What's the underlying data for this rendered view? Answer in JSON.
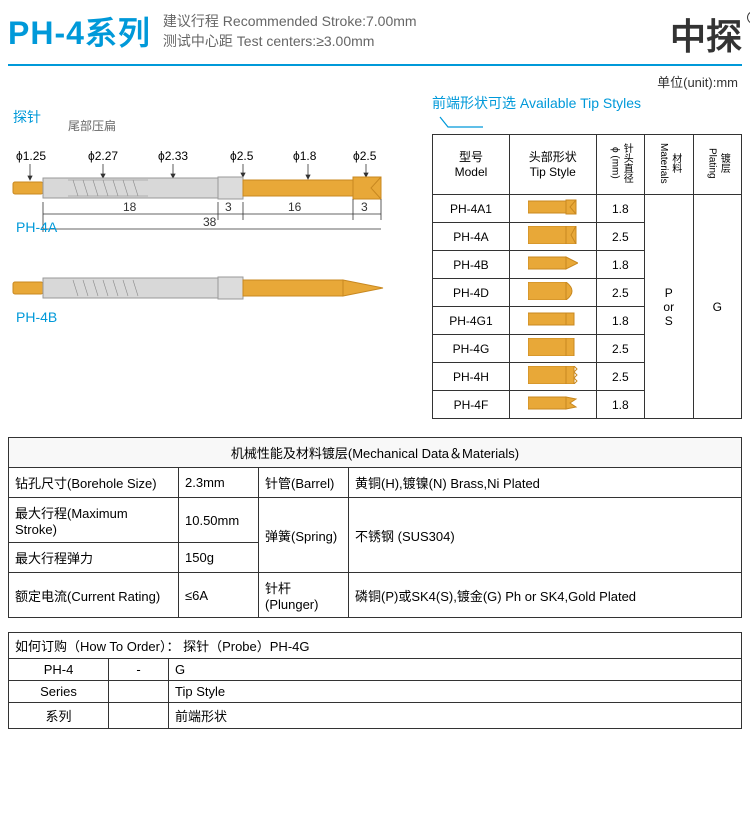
{
  "header": {
    "title": "PH-4系列",
    "stroke_label": "建议行程 Recommended Stroke:",
    "stroke_value": "7.00mm",
    "centers_label": "测试中心距 Test centers:",
    "centers_value": "≥3.00mm",
    "brand": "中探"
  },
  "diagram": {
    "probe_label": "探针",
    "tail_label": "尾部压扁",
    "dims": {
      "d1": "ϕ1.25",
      "d2": "ϕ2.27",
      "d3": "ϕ2.33",
      "d4": "ϕ2.5",
      "d5": "ϕ1.8",
      "d6": "ϕ2.5"
    },
    "lengths": {
      "l1": "18",
      "l2": "3",
      "l3": "16",
      "l4": "3",
      "total": "38"
    },
    "model_a": "PH-4A",
    "model_b": "PH-4B",
    "colors": {
      "gold": "#e8a838",
      "gold_dark": "#c88820",
      "silver": "#cccccc",
      "silver_dark": "#999999",
      "line": "#0099d9"
    }
  },
  "tip_table": {
    "unit": "单位(unit):mm",
    "header": "前端形状可选 Available Tip Styles",
    "cols": {
      "model": "型号\nModel",
      "tip": "头部形状\nTip Style",
      "dia": "针头直径\nϕ (mm)",
      "mat": "材料\nMaterials",
      "plating": "镀层\nPlating"
    },
    "rows": [
      {
        "model": "PH-4A1",
        "tip_type": "cup",
        "dia": "1.8"
      },
      {
        "model": "PH-4A",
        "tip_type": "flatcup",
        "dia": "2.5"
      },
      {
        "model": "PH-4B",
        "tip_type": "point",
        "dia": "1.8"
      },
      {
        "model": "PH-4D",
        "tip_type": "dome",
        "dia": "2.5"
      },
      {
        "model": "PH-4G1",
        "tip_type": "flat",
        "dia": "1.8"
      },
      {
        "model": "PH-4G",
        "tip_type": "flat",
        "dia": "2.5"
      },
      {
        "model": "PH-4H",
        "tip_type": "serrated",
        "dia": "2.5"
      },
      {
        "model": "PH-4F",
        "tip_type": "multipoint",
        "dia": "1.8"
      }
    ],
    "materials": "P\nor\nS",
    "plating": "G"
  },
  "mech": {
    "title": "机械性能及材料镀层(Mechanical Data＆Materials)",
    "rows": [
      {
        "k": "钻孔尺寸(Borehole Size)",
        "v": "2.3mm"
      },
      {
        "k": "最大行程(Maximum Stroke)",
        "v": "10.50mm"
      },
      {
        "k": "最大行程弹力",
        "v": "150g"
      },
      {
        "k": "额定电流(Current Rating)",
        "v": "≤6A"
      }
    ],
    "materials": [
      {
        "k": "针管(Barrel)",
        "v": "黄铜(H),镀镍(N) Brass,Ni Plated"
      },
      {
        "k": "弹簧(Spring)",
        "v": "不锈钢 (SUS304)"
      },
      {
        "k": "针杆(Plunger)",
        "v": "磷铜(P)或SK4(S),镀金(G) Ph or SK4,Gold Plated"
      }
    ]
  },
  "order": {
    "title": "如何订购（How To Order）： 探针（Probe）PH-4G",
    "cells": {
      "series_val": "PH-4",
      "dash": "-",
      "tip_val": "G",
      "series_en": "Series",
      "tip_en": "Tip Style",
      "series_cn": "系列",
      "tip_cn": "前端形状"
    }
  }
}
